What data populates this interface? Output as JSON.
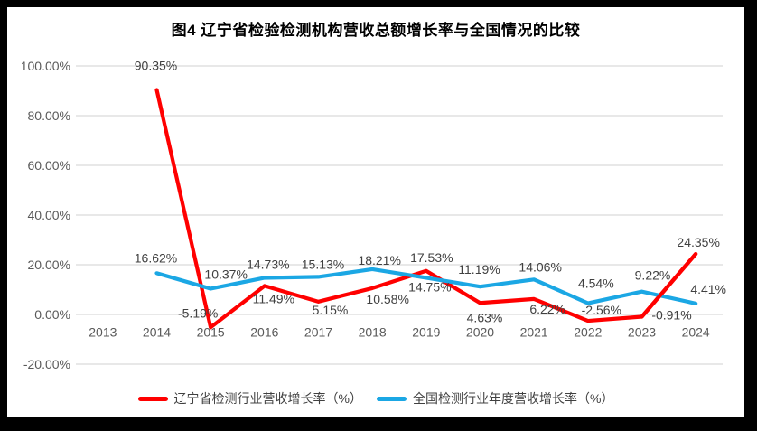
{
  "title": "图4 辽宁省检验检测机构营收总额增长率与全国情况的比较",
  "colors": {
    "liaoning_red": "#FF0000",
    "national_blue": "#1BA7E4",
    "gridline": "#D9D9D9",
    "axis_text": "#595959",
    "data_label_text": "#404040",
    "frame_background": "#000000",
    "chart_background": "#FFFFFF"
  },
  "chart_data": {
    "type": "line",
    "categories": [
      "2013",
      "2014",
      "2015",
      "2016",
      "2017",
      "2018",
      "2019",
      "2020",
      "2021",
      "2022",
      "2023",
      "2024"
    ],
    "series": [
      {
        "name": "辽宁省检测行业营收增长率（%）",
        "color": "#FF0000",
        "values": [
          null,
          90.35,
          -5.19,
          11.49,
          5.15,
          10.58,
          17.53,
          4.63,
          6.22,
          -2.56,
          -0.91,
          24.35
        ],
        "labels": [
          null,
          "90.35%",
          "-5.19%",
          "11.49%",
          "5.15%",
          "10.58%",
          "17.53%",
          "4.63%",
          "6.22%",
          "-2.56%",
          "-0.91%",
          "24.35%"
        ]
      },
      {
        "name": "全国检测行业年度营收增长率（%）",
        "color": "#1BA7E4",
        "values": [
          null,
          16.62,
          10.37,
          14.73,
          15.13,
          18.21,
          14.75,
          11.19,
          14.06,
          4.54,
          9.22,
          4.41
        ],
        "labels": [
          null,
          "16.62%",
          "10.37%",
          "14.73%",
          "15.13%",
          "18.21%",
          "14.75%",
          "11.19%",
          "14.06%",
          "4.54%",
          "9.22%",
          "4.41%"
        ]
      }
    ],
    "y_ticks": [
      {
        "value": 100,
        "label": "100.00%"
      },
      {
        "value": 80,
        "label": "80.00%"
      },
      {
        "value": 60,
        "label": "60.00%"
      },
      {
        "value": 40,
        "label": "40.00%"
      },
      {
        "value": 20,
        "label": "20.00%"
      },
      {
        "value": 0,
        "label": "0.00%"
      },
      {
        "value": -20,
        "label": "-20.00%"
      }
    ],
    "ylim": [
      -20,
      100
    ],
    "xlabel": "",
    "ylabel": "",
    "grid": true,
    "legend_position": "bottom"
  }
}
